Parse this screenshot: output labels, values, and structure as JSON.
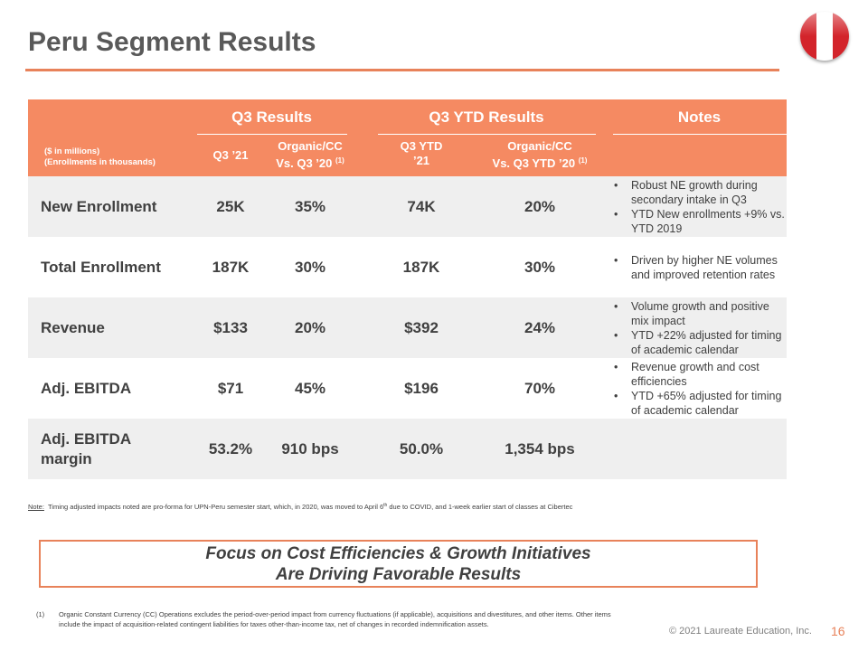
{
  "title": "Peru Segment Results",
  "flag_colors": {
    "red": "#d3242b",
    "white": "#ffffff"
  },
  "table": {
    "groups": {
      "q3_results": "Q3 Results",
      "q3_ytd_results": "Q3 YTD Results",
      "notes": "Notes"
    },
    "units_line1": "($ in millions)",
    "units_line2": "(Enrollments in thousands)",
    "columns": {
      "c1": "Q3 ’21",
      "c2_line1": "Organic/CC",
      "c2_line2": "Vs. Q3 ’20",
      "c2_sup": "(1)",
      "c3_line1": "Q3 YTD",
      "c3_line2": "’21",
      "c4_line1": "Organic/CC",
      "c4_line2": "Vs. Q3 YTD ’20",
      "c4_sup": "(1)"
    },
    "rows": [
      {
        "label": "New Enrollment",
        "q3": "25K",
        "q3_chg": "35%",
        "ytd": "74K",
        "ytd_chg": "20%",
        "notes": [
          "Robust NE growth during secondary intake in Q3",
          "YTD New enrollments +9% vs. YTD 2019"
        ]
      },
      {
        "label": "Total Enrollment",
        "q3": "187K",
        "q3_chg": "30%",
        "ytd": "187K",
        "ytd_chg": "30%",
        "notes": [
          "Driven by higher NE volumes and improved retention rates"
        ]
      },
      {
        "label": "Revenue",
        "q3": "$133",
        "q3_chg": "20%",
        "ytd": "$392",
        "ytd_chg": "24%",
        "notes": [
          "Volume growth and positive mix impact",
          "YTD +22% adjusted for timing of academic calendar"
        ]
      },
      {
        "label": "Adj. EBITDA",
        "q3": "$71",
        "q3_chg": "45%",
        "ytd": "$196",
        "ytd_chg": "70%",
        "notes": [
          "Revenue growth and cost efficiencies",
          "YTD +65% adjusted for timing of academic calendar"
        ]
      },
      {
        "label_line1": "Adj. EBITDA",
        "label_line2": "margin",
        "q3": "53.2%",
        "q3_chg": "910 bps",
        "ytd": "50.0%",
        "ytd_chg": "1,354 bps"
      }
    ]
  },
  "note": {
    "label": "Note:",
    "text_a": "Timing adjusted impacts noted are pro-forma for UPN-Peru semester start, which, in 2020, was moved to April 6",
    "sup": "th",
    "text_b": " due to COVID, and 1-week earlier start of classes at Cibertec"
  },
  "callout": {
    "line1": "Focus on Cost Efficiencies & Growth Initiatives",
    "line2": "Are Driving Favorable Results"
  },
  "footnote": {
    "num": "(1)",
    "text": "Organic Constant Currency (CC) Operations excludes the period-over-period impact from currency fluctuations (if applicable), acquisitions and divestitures, and other items. Other items include the impact of acquisition-related contingent liabilities for taxes other-than-income tax, net of changes in recorded indemnification assets."
  },
  "copyright": "© 2021 Laureate Education, Inc.",
  "page_number": "16"
}
